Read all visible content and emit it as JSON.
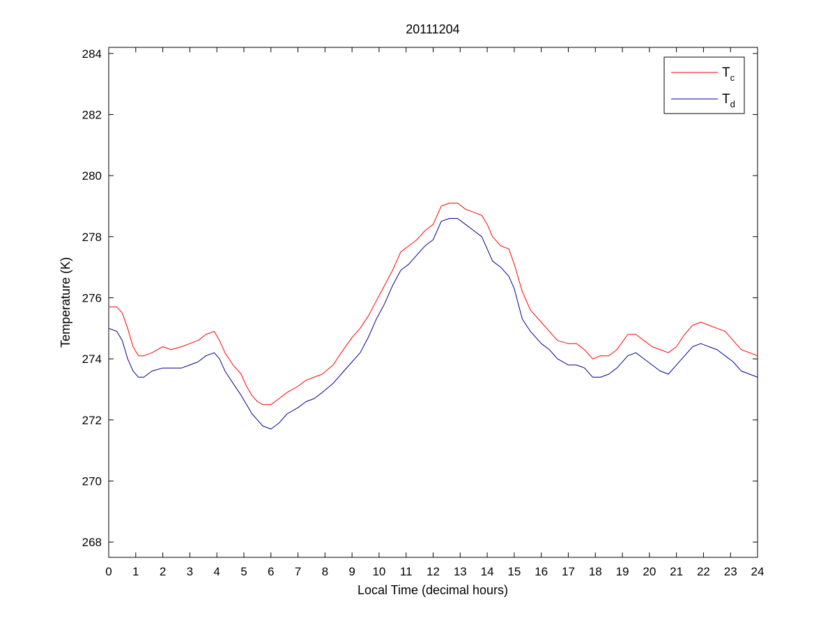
{
  "chart_data": {
    "type": "line",
    "title": "20111204",
    "xlabel": "Local Time (decimal hours)",
    "ylabel": "Temperature (K)",
    "xlim": [
      0,
      24
    ],
    "ylim": [
      267.5,
      284.2
    ],
    "xticks": [
      0,
      1,
      2,
      3,
      4,
      5,
      6,
      7,
      8,
      9,
      10,
      11,
      12,
      13,
      14,
      15,
      16,
      17,
      18,
      19,
      20,
      21,
      22,
      23,
      24
    ],
    "yticks": [
      268,
      270,
      272,
      274,
      276,
      278,
      280,
      282,
      284
    ],
    "grid": false,
    "legend_position": "top-right",
    "series": [
      {
        "name": "T",
        "subscript": "c",
        "color": "#ff0000",
        "x": [
          0,
          0.3,
          0.5,
          0.7,
          0.9,
          1.1,
          1.3,
          1.6,
          2.0,
          2.3,
          2.7,
          3.0,
          3.3,
          3.6,
          3.9,
          4.1,
          4.3,
          4.6,
          4.9,
          5.1,
          5.3,
          5.5,
          5.7,
          6.0,
          6.3,
          6.6,
          7.0,
          7.3,
          7.6,
          7.9,
          8.3,
          8.6,
          9.0,
          9.3,
          9.6,
          9.9,
          10.2,
          10.5,
          10.8,
          11.1,
          11.4,
          11.7,
          12.0,
          12.3,
          12.6,
          12.9,
          13.2,
          13.5,
          13.8,
          14.0,
          14.2,
          14.5,
          14.8,
          15.0,
          15.3,
          15.6,
          16.0,
          16.3,
          16.6,
          17.0,
          17.3,
          17.6,
          17.9,
          18.2,
          18.5,
          18.8,
          19.2,
          19.5,
          19.8,
          20.1,
          20.4,
          20.7,
          21.0,
          21.3,
          21.6,
          21.9,
          22.2,
          22.5,
          22.8,
          23.1,
          23.4,
          23.7,
          24.0
        ],
        "y": [
          275.7,
          275.7,
          275.5,
          275.0,
          274.4,
          274.1,
          274.1,
          274.2,
          274.4,
          274.3,
          274.4,
          274.5,
          274.6,
          274.8,
          274.9,
          274.6,
          274.2,
          273.8,
          273.5,
          273.1,
          272.8,
          272.6,
          272.5,
          272.5,
          272.7,
          272.9,
          273.1,
          273.3,
          273.4,
          273.5,
          273.8,
          274.2,
          274.7,
          275.0,
          275.4,
          275.9,
          276.4,
          276.9,
          277.5,
          277.7,
          277.9,
          278.2,
          278.4,
          279.0,
          279.1,
          279.1,
          278.9,
          278.8,
          278.7,
          278.4,
          278.0,
          277.7,
          277.6,
          277.1,
          276.2,
          275.6,
          275.2,
          274.9,
          274.6,
          274.5,
          274.5,
          274.3,
          274.0,
          274.1,
          274.1,
          274.3,
          274.8,
          274.8,
          274.6,
          274.4,
          274.3,
          274.2,
          274.4,
          274.8,
          275.1,
          275.2,
          275.1,
          275.0,
          274.9,
          274.6,
          274.3,
          274.2,
          274.1
        ]
      },
      {
        "name": "T",
        "subscript": "d",
        "color": "#00008b",
        "x": [
          0,
          0.3,
          0.5,
          0.7,
          0.9,
          1.1,
          1.3,
          1.6,
          2.0,
          2.3,
          2.7,
          3.0,
          3.3,
          3.6,
          3.9,
          4.1,
          4.3,
          4.6,
          4.9,
          5.1,
          5.3,
          5.5,
          5.7,
          6.0,
          6.3,
          6.6,
          7.0,
          7.3,
          7.6,
          7.9,
          8.3,
          8.6,
          9.0,
          9.3,
          9.6,
          9.9,
          10.2,
          10.5,
          10.8,
          11.1,
          11.4,
          11.7,
          12.0,
          12.3,
          12.6,
          12.9,
          13.2,
          13.5,
          13.8,
          14.0,
          14.2,
          14.5,
          14.8,
          15.0,
          15.3,
          15.6,
          16.0,
          16.3,
          16.6,
          17.0,
          17.3,
          17.6,
          17.9,
          18.2,
          18.5,
          18.8,
          19.2,
          19.5,
          19.8,
          20.1,
          20.4,
          20.7,
          21.0,
          21.3,
          21.6,
          21.9,
          22.2,
          22.5,
          22.8,
          23.1,
          23.4,
          23.7,
          24.0
        ],
        "y": [
          275.0,
          274.9,
          274.6,
          274.0,
          273.6,
          273.4,
          273.4,
          273.6,
          273.7,
          273.7,
          273.7,
          273.8,
          273.9,
          274.1,
          274.2,
          274.0,
          273.6,
          273.2,
          272.8,
          272.5,
          272.2,
          272.0,
          271.8,
          271.7,
          271.9,
          272.2,
          272.4,
          272.6,
          272.7,
          272.9,
          273.2,
          273.5,
          273.9,
          274.2,
          274.7,
          275.3,
          275.8,
          276.4,
          276.9,
          277.1,
          277.4,
          277.7,
          277.9,
          278.5,
          278.6,
          278.6,
          278.4,
          278.2,
          278.0,
          277.6,
          277.2,
          277.0,
          276.7,
          276.3,
          275.3,
          274.9,
          274.5,
          274.3,
          274.0,
          273.8,
          273.8,
          273.7,
          273.4,
          273.4,
          273.5,
          273.7,
          274.1,
          274.2,
          274.0,
          273.8,
          273.6,
          273.5,
          273.8,
          274.1,
          274.4,
          274.5,
          274.4,
          274.3,
          274.1,
          273.9,
          273.6,
          273.5,
          273.4
        ]
      }
    ]
  }
}
